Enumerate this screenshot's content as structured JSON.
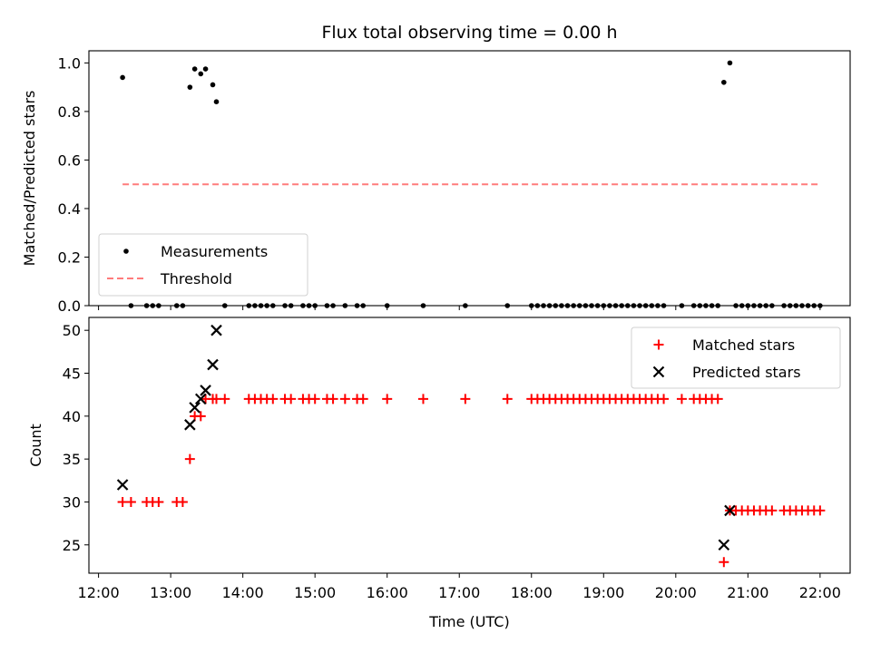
{
  "chart_data": [
    {
      "type": "scatter",
      "title": "Flux total observing time = 0.00 h",
      "xlabel": "",
      "ylabel": "Matched/Predicted stars",
      "ylim": [
        0,
        1.05
      ],
      "yticks": [
        "0.0",
        "0.2",
        "0.4",
        "0.6",
        "0.8",
        "1.0"
      ],
      "grid": false,
      "legend_position": "lower-left",
      "colors": {
        "measurements": "#000000",
        "threshold": "#ff7b7b"
      },
      "series": [
        {
          "name": "Measurements",
          "marker": "dot",
          "points": [
            [
              "12:20",
              0.94
            ],
            [
              "12:27",
              0.0
            ],
            [
              "12:40",
              0.0
            ],
            [
              "12:45",
              0.0
            ],
            [
              "12:50",
              0.0
            ],
            [
              "13:05",
              0.0
            ],
            [
              "13:10",
              0.0
            ],
            [
              "13:16",
              0.9
            ],
            [
              "13:20",
              0.975
            ],
            [
              "13:25",
              0.955
            ],
            [
              "13:29",
              0.975
            ],
            [
              "13:35",
              0.91
            ],
            [
              "13:38",
              0.84
            ],
            [
              "13:45",
              0.0
            ],
            [
              "14:05",
              0.0
            ],
            [
              "14:10",
              0.0
            ],
            [
              "14:15",
              0.0
            ],
            [
              "14:20",
              0.0
            ],
            [
              "14:25",
              0.0
            ],
            [
              "14:35",
              0.0
            ],
            [
              "14:40",
              0.0
            ],
            [
              "14:50",
              0.0
            ],
            [
              "14:55",
              0.0
            ],
            [
              "15:00",
              0.0
            ],
            [
              "15:10",
              0.0
            ],
            [
              "15:15",
              0.0
            ],
            [
              "15:25",
              0.0
            ],
            [
              "15:35",
              0.0
            ],
            [
              "15:40",
              0.0
            ],
            [
              "16:00",
              0.0
            ],
            [
              "16:30",
              0.0
            ],
            [
              "17:05",
              0.0
            ],
            [
              "17:40",
              0.0
            ],
            [
              "18:00",
              0.0
            ],
            [
              "18:05",
              0.0
            ],
            [
              "18:10",
              0.0
            ],
            [
              "18:15",
              0.0
            ],
            [
              "18:20",
              0.0
            ],
            [
              "18:25",
              0.0
            ],
            [
              "18:30",
              0.0
            ],
            [
              "18:35",
              0.0
            ],
            [
              "18:40",
              0.0
            ],
            [
              "18:45",
              0.0
            ],
            [
              "18:50",
              0.0
            ],
            [
              "18:55",
              0.0
            ],
            [
              "19:00",
              0.0
            ],
            [
              "19:05",
              0.0
            ],
            [
              "19:10",
              0.0
            ],
            [
              "19:15",
              0.0
            ],
            [
              "19:20",
              0.0
            ],
            [
              "19:25",
              0.0
            ],
            [
              "19:30",
              0.0
            ],
            [
              "19:35",
              0.0
            ],
            [
              "19:40",
              0.0
            ],
            [
              "19:45",
              0.0
            ],
            [
              "19:50",
              0.0
            ],
            [
              "20:05",
              0.0
            ],
            [
              "20:15",
              0.0
            ],
            [
              "20:20",
              0.0
            ],
            [
              "20:25",
              0.0
            ],
            [
              "20:30",
              0.0
            ],
            [
              "20:35",
              0.0
            ],
            [
              "20:40",
              0.92
            ],
            [
              "20:45",
              1.0
            ],
            [
              "20:50",
              0.0
            ],
            [
              "20:55",
              0.0
            ],
            [
              "21:00",
              0.0
            ],
            [
              "21:05",
              0.0
            ],
            [
              "21:10",
              0.0
            ],
            [
              "21:15",
              0.0
            ],
            [
              "21:20",
              0.0
            ],
            [
              "21:30",
              0.0
            ],
            [
              "21:35",
              0.0
            ],
            [
              "21:40",
              0.0
            ],
            [
              "21:45",
              0.0
            ],
            [
              "21:50",
              0.0
            ],
            [
              "21:55",
              0.0
            ],
            [
              "22:00",
              0.0
            ]
          ]
        },
        {
          "name": "Threshold",
          "marker": "dashed-line",
          "points": [
            [
              "12:20",
              0.5
            ],
            [
              "22:00",
              0.5
            ]
          ]
        }
      ]
    },
    {
      "type": "scatter",
      "title": "",
      "xlabel": "Time (UTC)",
      "ylabel": "Count",
      "ylim": [
        21.7,
        51.5
      ],
      "yticks": [
        "25",
        "30",
        "35",
        "40",
        "45",
        "50"
      ],
      "xticks": [
        "12:00",
        "13:00",
        "14:00",
        "15:00",
        "16:00",
        "17:00",
        "18:00",
        "19:00",
        "20:00",
        "21:00",
        "22:00"
      ],
      "xlim": [
        "11:52",
        "22:25"
      ],
      "grid": false,
      "legend_position": "upper-right",
      "colors": {
        "matched": "#ff0000",
        "predicted": "#000000"
      },
      "series": [
        {
          "name": "Matched stars",
          "marker": "plus",
          "points": [
            [
              "12:20",
              30
            ],
            [
              "12:27",
              30
            ],
            [
              "12:40",
              30
            ],
            [
              "12:45",
              30
            ],
            [
              "12:50",
              30
            ],
            [
              "13:05",
              30
            ],
            [
              "13:10",
              30
            ],
            [
              "13:16",
              35
            ],
            [
              "13:20",
              40
            ],
            [
              "13:25",
              40
            ],
            [
              "13:29",
              42
            ],
            [
              "13:35",
              42
            ],
            [
              "13:38",
              42
            ],
            [
              "13:45",
              42
            ],
            [
              "14:05",
              42
            ],
            [
              "14:10",
              42
            ],
            [
              "14:15",
              42
            ],
            [
              "14:20",
              42
            ],
            [
              "14:25",
              42
            ],
            [
              "14:35",
              42
            ],
            [
              "14:40",
              42
            ],
            [
              "14:50",
              42
            ],
            [
              "14:55",
              42
            ],
            [
              "15:00",
              42
            ],
            [
              "15:10",
              42
            ],
            [
              "15:15",
              42
            ],
            [
              "15:25",
              42
            ],
            [
              "15:35",
              42
            ],
            [
              "15:40",
              42
            ],
            [
              "16:00",
              42
            ],
            [
              "16:30",
              42
            ],
            [
              "17:05",
              42
            ],
            [
              "17:40",
              42
            ],
            [
              "18:00",
              42
            ],
            [
              "18:05",
              42
            ],
            [
              "18:10",
              42
            ],
            [
              "18:15",
              42
            ],
            [
              "18:20",
              42
            ],
            [
              "18:25",
              42
            ],
            [
              "18:30",
              42
            ],
            [
              "18:35",
              42
            ],
            [
              "18:40",
              42
            ],
            [
              "18:45",
              42
            ],
            [
              "18:50",
              42
            ],
            [
              "18:55",
              42
            ],
            [
              "19:00",
              42
            ],
            [
              "19:05",
              42
            ],
            [
              "19:10",
              42
            ],
            [
              "19:15",
              42
            ],
            [
              "19:20",
              42
            ],
            [
              "19:25",
              42
            ],
            [
              "19:30",
              42
            ],
            [
              "19:35",
              42
            ],
            [
              "19:40",
              42
            ],
            [
              "19:45",
              42
            ],
            [
              "19:50",
              42
            ],
            [
              "20:05",
              42
            ],
            [
              "20:15",
              42
            ],
            [
              "20:20",
              42
            ],
            [
              "20:25",
              42
            ],
            [
              "20:30",
              42
            ],
            [
              "20:35",
              42
            ],
            [
              "20:40",
              23
            ],
            [
              "20:45",
              29
            ],
            [
              "20:50",
              29
            ],
            [
              "20:55",
              29
            ],
            [
              "21:00",
              29
            ],
            [
              "21:05",
              29
            ],
            [
              "21:10",
              29
            ],
            [
              "21:15",
              29
            ],
            [
              "21:20",
              29
            ],
            [
              "21:30",
              29
            ],
            [
              "21:35",
              29
            ],
            [
              "21:40",
              29
            ],
            [
              "21:45",
              29
            ],
            [
              "21:50",
              29
            ],
            [
              "21:55",
              29
            ],
            [
              "22:00",
              29
            ]
          ]
        },
        {
          "name": "Predicted stars",
          "marker": "x",
          "points": [
            [
              "12:20",
              32
            ],
            [
              "13:16",
              39
            ],
            [
              "13:20",
              41
            ],
            [
              "13:25",
              42
            ],
            [
              "13:29",
              43
            ],
            [
              "13:35",
              46
            ],
            [
              "13:38",
              50
            ],
            [
              "20:40",
              25
            ],
            [
              "20:45",
              29
            ]
          ]
        }
      ]
    }
  ]
}
